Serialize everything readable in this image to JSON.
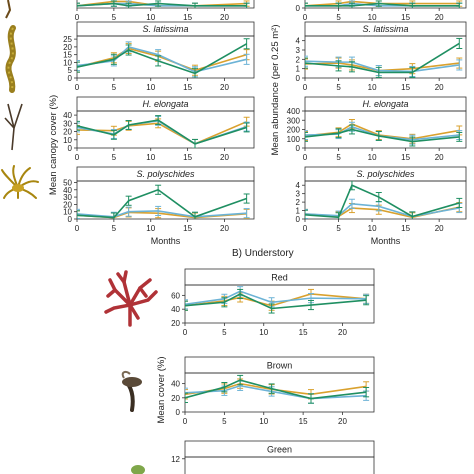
{
  "figure": {
    "section_b_label": "B) Understory",
    "colors": {
      "orange": "#d9a12e",
      "blue": "#6cb3d6",
      "green": "#1f8f62"
    },
    "icons": [
      "fucus-seaweed-icon",
      "laminaria-seaweed-icon",
      "himanthalia-seaweed-icon",
      "saccorhiza-seaweed-icon",
      "red-algae-icon",
      "brown-algae-icon",
      "green-algae-icon"
    ]
  },
  "chart_data": [
    {
      "type": "line",
      "panel": "A-cover-top",
      "title": "",
      "xlim": [
        0,
        24
      ],
      "ylim": [
        0,
        10
      ],
      "x_ticks": [
        0,
        5,
        10,
        15,
        20
      ],
      "y_ticks": [],
      "xlabel": "",
      "ylabel": "",
      "series": [
        {
          "values": [
            [
              0,
              1
            ],
            [
              5,
              3
            ],
            [
              7,
              3
            ],
            [
              11,
              1
            ],
            [
              16,
              1
            ],
            [
              23,
              2
            ]
          ]
        },
        {
          "values": [
            [
              0,
              1
            ],
            [
              5,
              2
            ],
            [
              7,
              2
            ],
            [
              11,
              1
            ],
            [
              16,
              1
            ],
            [
              23,
              1
            ]
          ]
        },
        {
          "values": [
            [
              0,
              1
            ],
            [
              5,
              2
            ],
            [
              7,
              1
            ],
            [
              11,
              2
            ],
            [
              16,
              1
            ],
            [
              23,
              1
            ]
          ]
        }
      ]
    },
    {
      "type": "line",
      "panel": "A-abundance-top",
      "title": "",
      "xlim": [
        0,
        24
      ],
      "ylim": [
        0,
        1
      ],
      "x_ticks": [
        0,
        5,
        10,
        15,
        20
      ],
      "y_ticks": [
        "0"
      ],
      "xlabel": "",
      "ylabel": "",
      "series": [
        {
          "values": [
            [
              0,
              0.1
            ],
            [
              5,
              0.2
            ],
            [
              7,
              0.3
            ],
            [
              11,
              0.2
            ],
            [
              16,
              0.2
            ],
            [
              23,
              0.2
            ]
          ]
        },
        {
          "values": [
            [
              0,
              0.1
            ],
            [
              5,
              0.1
            ],
            [
              7,
              0.2
            ],
            [
              11,
              0.1
            ],
            [
              16,
              0.1
            ],
            [
              23,
              0.1
            ]
          ]
        },
        {
          "values": [
            [
              0,
              0.1
            ],
            [
              5,
              0.1
            ],
            [
              7,
              0.1
            ],
            [
              11,
              0.2
            ],
            [
              16,
              0.1
            ],
            [
              23,
              0.1
            ]
          ]
        }
      ]
    },
    {
      "type": "line",
      "panel": "A-cover-slat",
      "title": "S. latissima",
      "xlim": [
        0,
        24
      ],
      "ylim": [
        0,
        27
      ],
      "x_ticks": [
        0,
        5,
        10,
        15,
        20
      ],
      "y_ticks": [
        0,
        5,
        10,
        15,
        20,
        25
      ],
      "xlabel": "",
      "ylabel": "",
      "series": [
        {
          "values": [
            [
              0,
              7
            ],
            [
              5,
              13
            ],
            [
              7,
              19
            ],
            [
              11,
              14
            ],
            [
              16,
              5
            ],
            [
              23,
              15
            ]
          ]
        },
        {
          "values": [
            [
              0,
              8
            ],
            [
              5,
              11
            ],
            [
              7,
              20
            ],
            [
              11,
              15
            ],
            [
              16,
              4
            ],
            [
              23,
              12
            ]
          ]
        },
        {
          "values": [
            [
              0,
              7
            ],
            [
              5,
              12
            ],
            [
              7,
              18
            ],
            [
              11,
              11
            ],
            [
              16,
              3
            ],
            [
              23,
              22
            ]
          ]
        }
      ]
    },
    {
      "type": "line",
      "panel": "A-abundance-slat",
      "title": "S. latissima",
      "xlim": [
        0,
        24
      ],
      "ylim": [
        0,
        4.5
      ],
      "x_ticks": [
        0,
        5,
        10,
        15,
        20
      ],
      "y_ticks": [
        0,
        1,
        2,
        3,
        4
      ],
      "xlabel": "",
      "ylabel": "",
      "series": [
        {
          "values": [
            [
              0,
              1.5
            ],
            [
              5,
              1.6
            ],
            [
              7,
              1.4
            ],
            [
              11,
              0.8
            ],
            [
              16,
              1.0
            ],
            [
              23,
              1.6
            ]
          ]
        },
        {
          "values": [
            [
              0,
              1.8
            ],
            [
              5,
              1.7
            ],
            [
              7,
              1.7
            ],
            [
              11,
              0.8
            ],
            [
              16,
              0.7
            ],
            [
              23,
              1.4
            ]
          ]
        },
        {
          "values": [
            [
              0,
              1.6
            ],
            [
              5,
              1.3
            ],
            [
              7,
              1.2
            ],
            [
              11,
              0.6
            ],
            [
              16,
              0.6
            ],
            [
              23,
              3.7
            ]
          ]
        }
      ]
    },
    {
      "type": "line",
      "panel": "A-cover-helong",
      "title": "H. elongata",
      "xlim": [
        0,
        24
      ],
      "ylim": [
        0,
        45
      ],
      "x_ticks": [
        0,
        5,
        10,
        15,
        20
      ],
      "y_ticks": [
        0,
        10,
        20,
        30,
        40
      ],
      "xlabel": "",
      "ylabel": "",
      "series": [
        {
          "values": [
            [
              0,
              22
            ],
            [
              5,
              21
            ],
            [
              7,
              27
            ],
            [
              11,
              30
            ],
            [
              16,
              5
            ],
            [
              23,
              32
            ]
          ]
        },
        {
          "values": [
            [
              0,
              25
            ],
            [
              5,
              17
            ],
            [
              7,
              28
            ],
            [
              11,
              33
            ],
            [
              16,
              5
            ],
            [
              23,
              26
            ]
          ]
        },
        {
          "values": [
            [
              0,
              27
            ],
            [
              5,
              16
            ],
            [
              7,
              28
            ],
            [
              11,
              34
            ],
            [
              16,
              5
            ],
            [
              23,
              25
            ]
          ]
        }
      ]
    },
    {
      "type": "line",
      "panel": "A-abundance-helong",
      "title": "H. elongata",
      "xlim": [
        0,
        24
      ],
      "ylim": [
        0,
        400
      ],
      "x_ticks": [
        0,
        5,
        10,
        15,
        20
      ],
      "y_ticks": [
        0,
        100,
        200,
        300,
        400
      ],
      "xlabel": "",
      "ylabel": "",
      "series": [
        {
          "values": [
            [
              0,
              130
            ],
            [
              5,
              170
            ],
            [
              7,
              260
            ],
            [
              11,
              140
            ],
            [
              16,
              100
            ],
            [
              23,
              190
            ]
          ]
        },
        {
          "values": [
            [
              0,
              140
            ],
            [
              5,
              150
            ],
            [
              7,
              230
            ],
            [
              11,
              130
            ],
            [
              16,
              90
            ],
            [
              23,
              140
            ]
          ]
        },
        {
          "values": [
            [
              0,
              120
            ],
            [
              5,
              160
            ],
            [
              7,
              200
            ],
            [
              11,
              130
            ],
            [
              16,
              70
            ],
            [
              23,
              120
            ]
          ]
        }
      ]
    },
    {
      "type": "line",
      "panel": "A-cover-spoly",
      "title": "S. polyschides",
      "xlim": [
        0,
        24
      ],
      "ylim": [
        0,
        52
      ],
      "x_ticks": [
        0,
        5,
        10,
        15,
        20
      ],
      "y_ticks": [
        0,
        10,
        20,
        30,
        40,
        50
      ],
      "xlabel": "Months",
      "ylabel": "",
      "series": [
        {
          "values": [
            [
              0,
              5
            ],
            [
              5,
              2
            ],
            [
              7,
              9
            ],
            [
              11,
              8
            ],
            [
              16,
              2
            ],
            [
              23,
              7
            ]
          ]
        },
        {
          "values": [
            [
              0,
              7
            ],
            [
              5,
              3
            ],
            [
              7,
              10
            ],
            [
              11,
              11
            ],
            [
              16,
              3
            ],
            [
              23,
              8
            ]
          ]
        },
        {
          "values": [
            [
              0,
              5
            ],
            [
              5,
              2
            ],
            [
              7,
              25
            ],
            [
              11,
              40
            ],
            [
              16,
              3
            ],
            [
              23,
              28
            ]
          ]
        }
      ]
    },
    {
      "type": "line",
      "panel": "A-abundance-spoly",
      "title": "S. polyschides",
      "xlim": [
        0,
        24
      ],
      "ylim": [
        0,
        4.5
      ],
      "x_ticks": [
        0,
        5,
        10,
        15,
        20
      ],
      "y_ticks": [
        0,
        1,
        2,
        3,
        4
      ],
      "xlabel": "Months",
      "ylabel": "",
      "series": [
        {
          "values": [
            [
              0,
              0.6
            ],
            [
              5,
              0.3
            ],
            [
              7,
              1.3
            ],
            [
              11,
              1.1
            ],
            [
              16,
              0.2
            ],
            [
              23,
              1.4
            ]
          ]
        },
        {
          "values": [
            [
              0,
              0.6
            ],
            [
              5,
              0.4
            ],
            [
              7,
              1.8
            ],
            [
              11,
              1.5
            ],
            [
              16,
              0.3
            ],
            [
              23,
              1.3
            ]
          ]
        },
        {
          "values": [
            [
              0,
              0.5
            ],
            [
              5,
              0.2
            ],
            [
              7,
              4.0
            ],
            [
              11,
              2.6
            ],
            [
              16,
              0.3
            ],
            [
              23,
              1.9
            ]
          ]
        }
      ]
    },
    {
      "type": "line",
      "panel": "B-red",
      "title": "Red",
      "xlim": [
        0,
        24
      ],
      "ylim": [
        20,
        75
      ],
      "x_ticks": [
        0,
        5,
        10,
        15,
        20
      ],
      "y_ticks": [
        20,
        40,
        60
      ],
      "xlabel": "",
      "ylabel": "",
      "series": [
        {
          "values": [
            [
              0,
              45
            ],
            [
              5,
              52
            ],
            [
              7,
              57
            ],
            [
              11,
              45
            ],
            [
              16,
              62
            ],
            [
              23,
              55
            ]
          ]
        },
        {
          "values": [
            [
              0,
              47
            ],
            [
              5,
              55
            ],
            [
              7,
              66
            ],
            [
              11,
              50
            ],
            [
              16,
              56
            ],
            [
              23,
              55
            ]
          ]
        },
        {
          "values": [
            [
              0,
              45
            ],
            [
              5,
              50
            ],
            [
              7,
              62
            ],
            [
              11,
              41
            ],
            [
              16,
              46
            ],
            [
              23,
              53
            ]
          ]
        }
      ]
    },
    {
      "type": "line",
      "panel": "B-brown",
      "title": "Brown",
      "xlim": [
        0,
        24
      ],
      "ylim": [
        0,
        55
      ],
      "x_ticks": [
        0,
        5,
        10,
        15,
        20
      ],
      "y_ticks": [
        0,
        20,
        40
      ],
      "xlabel": "",
      "ylabel": "",
      "series": [
        {
          "values": [
            [
              0,
              25
            ],
            [
              5,
              33
            ],
            [
              7,
              40
            ],
            [
              11,
              32
            ],
            [
              16,
              25
            ],
            [
              23,
              36
            ]
          ]
        },
        {
          "values": [
            [
              0,
              27
            ],
            [
              5,
              30
            ],
            [
              7,
              37
            ],
            [
              11,
              29
            ],
            [
              16,
              19
            ],
            [
              23,
              23
            ]
          ]
        },
        {
          "values": [
            [
              0,
              20
            ],
            [
              5,
              35
            ],
            [
              7,
              45
            ],
            [
              11,
              33
            ],
            [
              16,
              19
            ],
            [
              23,
              28
            ]
          ]
        }
      ]
    },
    {
      "type": "line",
      "panel": "B-green",
      "title": "Green",
      "xlim": [
        0,
        24
      ],
      "ylim": [
        0,
        13
      ],
      "x_ticks": [],
      "y_ticks": [
        12
      ],
      "xlabel": "",
      "ylabel": "",
      "series": []
    }
  ],
  "axis_titles": {
    "cover_ylabel": "Mean canopy cover (%)",
    "abundance_ylabel": "Mean abundance (per 0.25 m²)",
    "understory_ylabel": "Mean cover (%)"
  }
}
